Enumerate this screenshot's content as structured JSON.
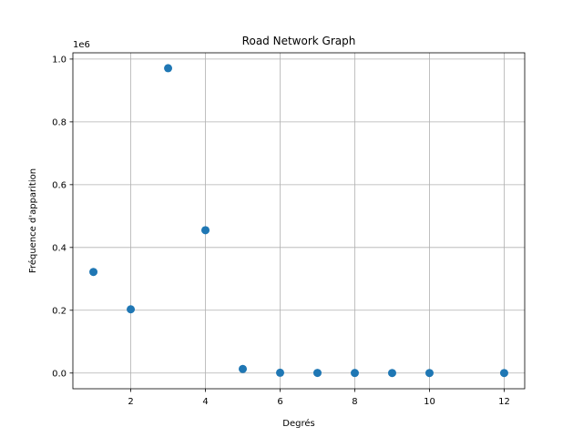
{
  "chart_data": {
    "type": "scatter",
    "title": "Road Network Graph",
    "xlabel": "Degrés",
    "ylabel": "Fréquence d'apparition",
    "y_offset_label": "1e6",
    "x": [
      1,
      2,
      3,
      4,
      5,
      6,
      7,
      8,
      9,
      10,
      12
    ],
    "y": [
      0.322,
      0.203,
      0.971,
      0.455,
      0.013,
      0.001,
      0.0005,
      0.0003,
      0.0002,
      0.0001,
      5e-05
    ],
    "xlim": [
      0.45,
      12.55
    ],
    "ylim": [
      -0.05,
      1.02
    ],
    "xticks": [
      2,
      4,
      6,
      8,
      10,
      12
    ],
    "xtick_labels": [
      "2",
      "4",
      "6",
      "8",
      "10",
      "12"
    ],
    "yticks": [
      0.0,
      0.2,
      0.4,
      0.6,
      0.8,
      1.0
    ],
    "ytick_labels": [
      "0.0",
      "0.2",
      "0.4",
      "0.6",
      "0.8",
      "1.0"
    ],
    "grid": true,
    "marker_color": "#1f77b4"
  }
}
